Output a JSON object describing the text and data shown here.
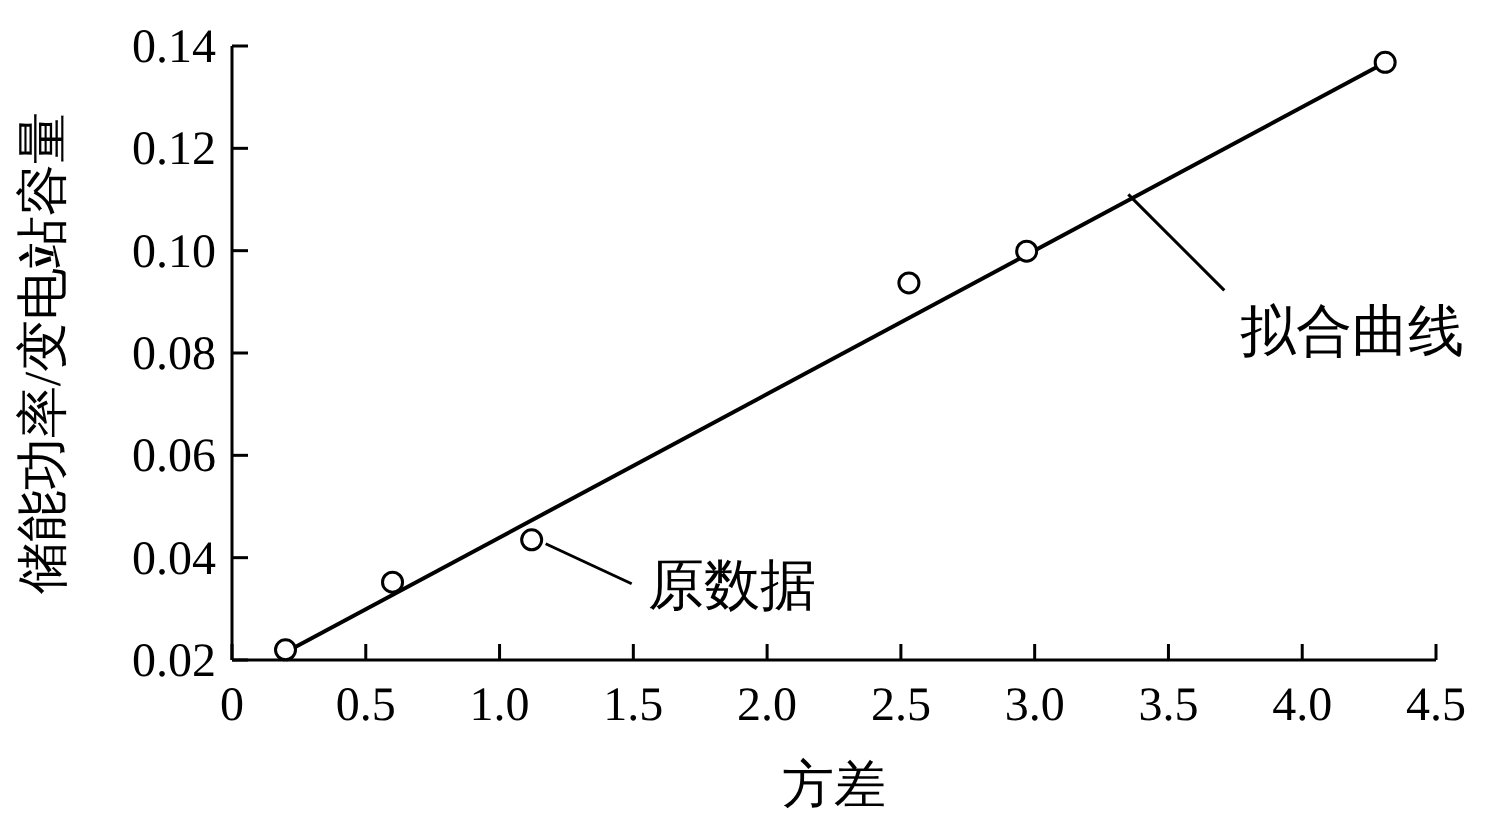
{
  "chart_data": {
    "type": "scatter",
    "xlabel": "方差",
    "ylabel": "储能功率/变电站容量",
    "xlim": [
      0,
      4.5
    ],
    "ylim": [
      0.02,
      0.14
    ],
    "xticks": [
      0,
      0.5,
      {
        "value": 1,
        "label": "1.0"
      },
      1.5,
      {
        "value": 2,
        "label": "2.0"
      },
      2.5,
      {
        "value": 3,
        "label": "3.0"
      },
      3.5,
      {
        "value": 4,
        "label": "4.0"
      },
      4.5
    ],
    "yticks": [
      0.02,
      0.04,
      0.06,
      0.08,
      {
        "value": 0.1,
        "label": "0.10"
      },
      0.12,
      0.14
    ],
    "grid": false,
    "series": [
      {
        "marker": "circle",
        "color": "#000000",
        "x": [
          0.2,
          0.6,
          1.12,
          2.53,
          2.97,
          4.31
        ],
        "values": [
          0.022,
          0.0352,
          0.0435,
          0.0937,
          0.0999,
          0.1368
        ]
      },
      {
        "type": "line",
        "line_style": "solid",
        "color": "#000000",
        "x": [
          0.2,
          4.3
        ],
        "values": [
          0.0215,
          0.1365
        ]
      }
    ],
    "annotations": [
      {
        "text": "原数据",
        "x": 1.12,
        "y": 0.0435
      },
      {
        "text": "拟合曲线",
        "x": 3.35,
        "y": 0.111
      }
    ]
  }
}
